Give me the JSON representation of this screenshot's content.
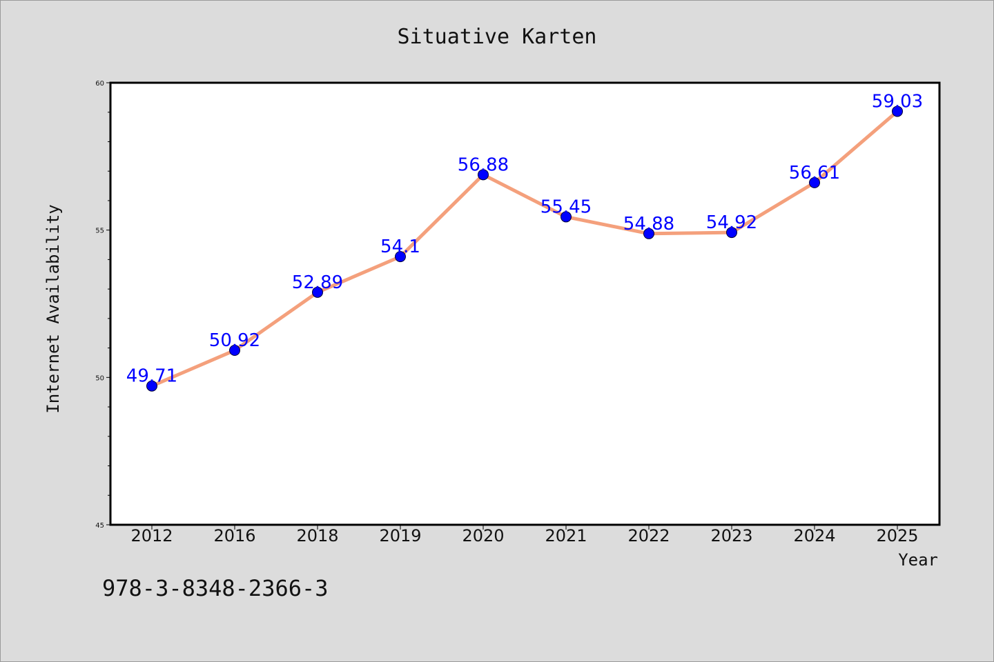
{
  "page": {
    "footnote": "978-3-8348-2366-3"
  },
  "colors": {
    "background": "#dcdcdc",
    "plot_background": "#ffffff",
    "line": "#f4a07c",
    "marker": "#0000ff",
    "label": "#0000ff"
  },
  "chart_data": {
    "type": "line",
    "title": "Situative Karten",
    "xlabel": "Year",
    "ylabel": "Internet Availability",
    "categories": [
      "2012",
      "2016",
      "2018",
      "2019",
      "2020",
      "2021",
      "2022",
      "2023",
      "2024",
      "2025"
    ],
    "series": [
      {
        "values": [
          49.71,
          50.92,
          52.89,
          54.1,
          56.88,
          55.45,
          54.88,
          54.92,
          56.61,
          59.03
        ],
        "labels": [
          "49.71",
          "50.92",
          "52.89",
          "54.1",
          "56.88",
          "55.45",
          "54.88",
          "54.92",
          "56.61",
          "59.03"
        ]
      }
    ],
    "ylim": [
      45,
      60
    ],
    "yticks": [
      45,
      50,
      55,
      60
    ],
    "grid": false,
    "legend": "none"
  }
}
